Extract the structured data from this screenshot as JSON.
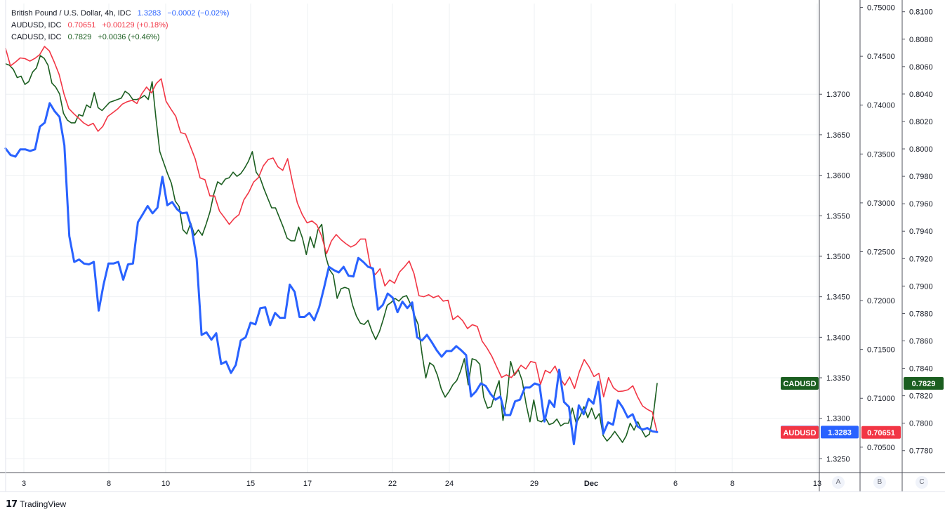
{
  "legend": [
    {
      "name": "British Pound / U.S. Dollar, 4h, IDC",
      "last": "1.3283",
      "change": "−0.0002 (−0.02%)",
      "color": "#2962ff"
    },
    {
      "name": "AUDUSD, IDC",
      "last": "0.70651",
      "change": "+0.00129 (+0.18%)",
      "color": "#f23645"
    },
    {
      "name": "CADUSD, IDC",
      "last": "0.7829",
      "change": "+0.0036 (+0.46%)",
      "color": "#1b5e20"
    }
  ],
  "brand": "TradingView",
  "scale_letters": [
    "A",
    "B",
    "C"
  ],
  "x_ticks": [
    "3",
    "8",
    "10",
    "15",
    "17",
    "22",
    "24",
    "29",
    "Dec",
    "6",
    "8",
    "13"
  ],
  "colors": {
    "gbp": "#2962ff",
    "aud": "#f23645",
    "cad": "#1b5e20",
    "grid": "#eef0f3"
  },
  "chart_data": {
    "type": "line",
    "series": [
      {
        "name": "GBPUSD",
        "axis": "A",
        "color": "#2962ff",
        "label": "GBPUSD",
        "last_label": "1.3283",
        "last": 1.3283,
        "values": [
          1.3633,
          1.3625,
          1.3623,
          1.3632,
          1.3632,
          1.363,
          1.3632,
          1.366,
          1.3665,
          1.3689,
          1.3679,
          1.3672,
          1.3637,
          1.3525,
          1.3493,
          1.3496,
          1.3491,
          1.349,
          1.3493,
          1.3433,
          1.3465,
          1.3491,
          1.3491,
          1.3493,
          1.3471,
          1.349,
          1.3491,
          1.3542,
          1.3552,
          1.3562,
          1.3553,
          1.356,
          1.3598,
          1.3563,
          1.3567,
          1.3558,
          1.3553,
          1.3554,
          1.3534,
          1.3497,
          1.3403,
          1.3406,
          1.3397,
          1.3405,
          1.3367,
          1.337,
          1.3356,
          1.3366,
          1.3396,
          1.34,
          1.3418,
          1.3416,
          1.3436,
          1.3437,
          1.3415,
          1.343,
          1.3424,
          1.3424,
          1.3465,
          1.3456,
          1.3425,
          1.3425,
          1.343,
          1.3421,
          1.3437,
          1.3461,
          1.3487,
          1.3483,
          1.348,
          1.3487,
          1.3476,
          1.3475,
          1.3498,
          1.3493,
          1.3487,
          1.3485,
          1.3434,
          1.344,
          1.3454,
          1.3449,
          1.3431,
          1.3444,
          1.3436,
          1.3443,
          1.34,
          1.3396,
          1.3403,
          1.3394,
          1.3384,
          1.3376,
          1.3383,
          1.3383,
          1.3389,
          1.3384,
          1.3378,
          1.3327,
          1.3333,
          1.3343,
          1.334,
          1.333,
          1.3323,
          1.3327,
          1.3304,
          1.3304,
          1.3321,
          1.3323,
          1.3338,
          1.3338,
          1.3343,
          1.3341,
          1.3296,
          1.3322,
          1.3314,
          1.336,
          1.332,
          1.3314,
          1.3268,
          1.3316,
          1.3305,
          1.3324,
          1.3318,
          1.3345,
          1.3281,
          1.3295,
          1.3292,
          1.3322,
          1.3313,
          1.3301,
          1.3305,
          1.329,
          1.3286,
          1.3288,
          1.3284,
          1.3283
        ]
      },
      {
        "name": "AUDUSD",
        "axis": "B",
        "color": "#f23645",
        "label": "AUDUSD",
        "last_label": "0.70651",
        "last": 0.70651,
        "values": [
          0.74579,
          0.74402,
          0.7444,
          0.74483,
          0.74476,
          0.74451,
          0.74478,
          0.74516,
          0.746,
          0.74555,
          0.7444,
          0.74315,
          0.74115,
          0.73965,
          0.73913,
          0.73868,
          0.7382,
          0.7379,
          0.73814,
          0.73732,
          0.73783,
          0.73884,
          0.73922,
          0.73959,
          0.7401,
          0.74035,
          0.7405,
          0.74017,
          0.74115,
          0.74185,
          0.74125,
          0.74222,
          0.7427,
          0.7404,
          0.73959,
          0.73885,
          0.7372,
          0.73704,
          0.73577,
          0.73449,
          0.73255,
          0.73237,
          0.73072,
          0.7307,
          0.72915,
          0.7285,
          0.7278,
          0.7284,
          0.7288,
          0.7303,
          0.73107,
          0.73213,
          0.73259,
          0.73378,
          0.73443,
          0.73459,
          0.73369,
          0.73333,
          0.73452,
          0.73212,
          0.73,
          0.72882,
          0.72795,
          0.72815,
          0.72776,
          0.7266,
          0.7248,
          0.7261,
          0.72676,
          0.72622,
          0.72582,
          0.72548,
          0.72573,
          0.7263,
          0.7263,
          0.72355,
          0.72265,
          0.72325,
          0.7215,
          0.7221,
          0.72178,
          0.72292,
          0.72344,
          0.72405,
          0.72276,
          0.7205,
          0.72039,
          0.7206,
          0.7203,
          0.7205,
          0.71995,
          0.72003,
          0.71805,
          0.71844,
          0.71794,
          0.71714,
          0.71753,
          0.71735,
          0.71585,
          0.71515,
          0.71431,
          0.71321,
          0.71214,
          0.7124,
          0.71212,
          0.7127,
          0.71338,
          0.713,
          0.71377,
          0.71364,
          0.71142,
          0.71286,
          0.71259,
          0.7133,
          0.71209,
          0.71133,
          0.71218,
          0.711,
          0.71272,
          0.71397,
          0.71323,
          0.71222,
          0.71256,
          0.71015,
          0.71212,
          0.71108,
          0.7107,
          0.71074,
          0.71087,
          0.71128,
          0.71013,
          0.70922,
          0.70887,
          0.7086,
          0.70651
        ]
      },
      {
        "name": "CADUSD",
        "axis": "C",
        "color": "#1b5e20",
        "label": "CADUSD",
        "last_label": "0.7829",
        "last": 0.7829,
        "values": [
          0.8062,
          0.8061,
          0.8058,
          0.8052,
          0.8053,
          0.8047,
          0.8049,
          0.8056,
          0.8059,
          0.8068,
          0.8066,
          0.8061,
          0.8048,
          0.8045,
          0.804,
          0.8026,
          0.8021,
          0.8019,
          0.8019,
          0.8025,
          0.8024,
          0.8032,
          0.803,
          0.8041,
          0.803,
          0.8028,
          0.8031,
          0.8034,
          0.8035,
          0.8036,
          0.8037,
          0.8042,
          0.804,
          0.8036,
          0.8036,
          0.8037,
          0.8039,
          0.8036,
          0.8049,
          0.8022,
          0.7998,
          0.799,
          0.7982,
          0.7975,
          0.7962,
          0.7958,
          0.7941,
          0.7938,
          0.7946,
          0.7937,
          0.7941,
          0.7937,
          0.7945,
          0.7954,
          0.7967,
          0.7976,
          0.7974,
          0.7978,
          0.7979,
          0.7983,
          0.798,
          0.7982,
          0.7986,
          0.7991,
          0.7998,
          0.7983,
          0.7979,
          0.7971,
          0.7964,
          0.7957,
          0.7957,
          0.795,
          0.7943,
          0.7935,
          0.7933,
          0.7933,
          0.7943,
          0.7935,
          0.7923,
          0.7936,
          0.7928,
          0.7941,
          0.7945,
          0.7922,
          0.7912,
          0.7908,
          0.7891,
          0.7898,
          0.7899,
          0.7898,
          0.7886,
          0.7878,
          0.7873,
          0.7872,
          0.7875,
          0.7867,
          0.7861,
          0.7867,
          0.7876,
          0.7886,
          0.7888,
          0.7891,
          0.7889,
          0.7892,
          0.7893,
          0.7887,
          0.7879,
          0.7872,
          0.7851,
          0.7833,
          0.7844,
          0.7842,
          0.7835,
          0.7825,
          0.7819,
          0.7823,
          0.7828,
          0.7831,
          0.7838,
          0.7847,
          0.7828,
          0.7847,
          0.7846,
          0.7843,
          0.7819,
          0.7811,
          0.7812,
          0.7823,
          0.7831,
          0.7802,
          0.7818,
          0.7845,
          0.7835,
          0.7839,
          0.7831,
          0.7814,
          0.7801,
          0.7817,
          0.7802,
          0.7801,
          0.7804,
          0.7799,
          0.78,
          0.7803,
          0.7798,
          0.78,
          0.78,
          0.7811,
          0.78,
          0.7805,
          0.7812,
          0.7804,
          0.7811,
          0.7803,
          0.7807,
          0.7791,
          0.7787,
          0.779,
          0.7794,
          0.779,
          0.7786,
          0.7791,
          0.78,
          0.7795,
          0.7801,
          0.7795,
          0.779,
          0.7792,
          0.7806,
          0.7829
        ]
      }
    ],
    "axes": {
      "A": {
        "ticks": [
          "1.3700",
          "1.3650",
          "1.3600",
          "1.3550",
          "1.3500",
          "1.3450",
          "1.3400",
          "1.3350",
          "1.3300",
          "1.3250"
        ],
        "range": [
          1.3233,
          1.3812
        ]
      },
      "B": {
        "ticks": [
          "0.75000",
          "0.74500",
          "0.74000",
          "0.73500",
          "0.73000",
          "0.72500",
          "0.72000",
          "0.71500",
          "0.71000",
          "0.70500"
        ],
        "range": [
          0.7024,
          0.7504
        ]
      },
      "C": {
        "ticks": [
          "0.8100",
          "0.8080",
          "0.8060",
          "0.8040",
          "0.8020",
          "0.8000",
          "0.7980",
          "0.7960",
          "0.7940",
          "0.7920",
          "0.7900",
          "0.7880",
          "0.7860",
          "0.7840",
          "0.7820",
          "0.7800",
          "0.7780"
        ],
        "range": [
          0.7764,
          0.8106
        ]
      }
    },
    "x_labels": [
      "3",
      "8",
      "10",
      "15",
      "17",
      "22",
      "24",
      "29",
      "Dec",
      "6",
      "8",
      "13"
    ],
    "grid": true,
    "legend_position": "top-left"
  }
}
